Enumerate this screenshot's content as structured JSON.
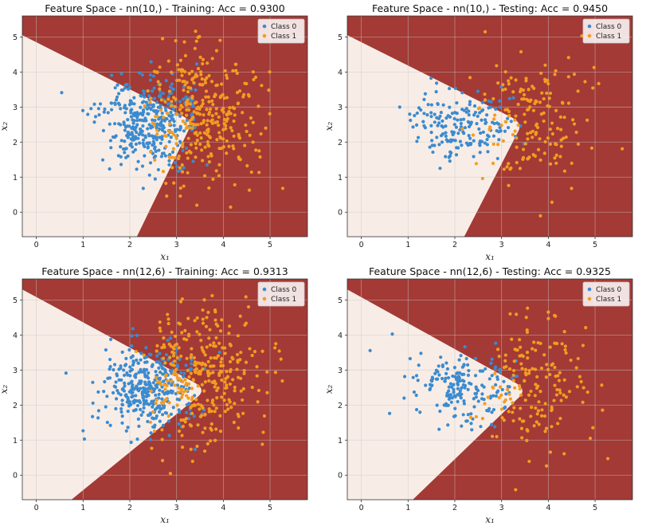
{
  "chart_data": [
    {
      "type": "scatter",
      "title": "Feature Space - nn(10,) - Training: Acc = 0.9300",
      "xlabel": "x₁",
      "ylabel": "x₂",
      "xlim": [
        -0.3,
        5.8
      ],
      "ylim": [
        -0.7,
        5.6
      ],
      "xticks": [
        0,
        1,
        2,
        3,
        4,
        5
      ],
      "yticks": [
        0,
        1,
        2,
        3,
        4,
        5
      ],
      "grid": true,
      "legend_position": "top-right",
      "region_colors": {
        "class0": "#f8ede6",
        "class1": "#a33a35"
      },
      "boundary": {
        "apex": [
          3.35,
          2.6
        ],
        "upper_left": [
          -0.3,
          5.05
        ],
        "lower_left": [
          2.15,
          -0.7
        ]
      },
      "series": [
        {
          "name": "Class 0",
          "color": "#3b8bd0",
          "center": [
            2.45,
            2.55
          ],
          "spread": [
            0.55,
            0.6
          ],
          "count": 380,
          "seed": 11
        },
        {
          "name": "Class 1",
          "color": "#f39c22",
          "center": [
            3.55,
            2.75
          ],
          "spread": [
            0.65,
            0.95
          ],
          "count": 340,
          "seed": 12
        }
      ]
    },
    {
      "type": "scatter",
      "title": "Feature Space - nn(10,) - Testing: Acc = 0.9450",
      "xlabel": "x₁",
      "ylabel": "x₂",
      "xlim": [
        -0.3,
        5.8
      ],
      "ylim": [
        -0.7,
        5.6
      ],
      "xticks": [
        0,
        1,
        2,
        3,
        4,
        5
      ],
      "yticks": [
        0,
        1,
        2,
        3,
        4,
        5
      ],
      "grid": true,
      "legend_position": "top-right",
      "region_colors": {
        "class0": "#f8ede6",
        "class1": "#a33a35"
      },
      "boundary": {
        "apex": [
          3.45,
          2.55
        ],
        "upper_left": [
          -0.3,
          5.05
        ],
        "lower_left": [
          2.2,
          -0.7
        ]
      },
      "series": [
        {
          "name": "Class 0",
          "color": "#3b8bd0",
          "center": [
            2.2,
            2.5
          ],
          "spread": [
            0.6,
            0.55
          ],
          "count": 190,
          "seed": 21
        },
        {
          "name": "Class 1",
          "color": "#f39c22",
          "center": [
            3.7,
            2.7
          ],
          "spread": [
            0.6,
            0.95
          ],
          "count": 170,
          "seed": 22
        }
      ]
    },
    {
      "type": "scatter",
      "title": "Feature Space - nn(12,6) - Training: Acc = 0.9313",
      "xlabel": "x₁",
      "ylabel": "x₂",
      "xlim": [
        -0.3,
        5.8
      ],
      "ylim": [
        -0.7,
        5.6
      ],
      "xticks": [
        0,
        1,
        2,
        3,
        4,
        5
      ],
      "yticks": [
        0,
        1,
        2,
        3,
        4,
        5
      ],
      "grid": true,
      "legend_position": "top-right",
      "region_colors": {
        "class0": "#f8ede6",
        "class1": "#a33a35"
      },
      "boundary": {
        "apex": [
          3.65,
          2.45
        ],
        "upper_left": [
          -0.3,
          5.3
        ],
        "lower_left": [
          0.75,
          -0.7
        ]
      },
      "series": [
        {
          "name": "Class 0",
          "color": "#3b8bd0",
          "center": [
            2.45,
            2.45
          ],
          "spread": [
            0.55,
            0.6
          ],
          "count": 380,
          "seed": 31
        },
        {
          "name": "Class 1",
          "color": "#f39c22",
          "center": [
            3.55,
            2.75
          ],
          "spread": [
            0.65,
            0.95
          ],
          "count": 340,
          "seed": 32
        }
      ]
    },
    {
      "type": "scatter",
      "title": "Feature Space - nn(12,6) - Testing: Acc = 0.9325",
      "xlabel": "x₁",
      "ylabel": "x₂",
      "xlim": [
        -0.3,
        5.8
      ],
      "ylim": [
        -0.7,
        5.6
      ],
      "xticks": [
        0,
        1,
        2,
        3,
        4,
        5
      ],
      "yticks": [
        0,
        1,
        2,
        3,
        4,
        5
      ],
      "grid": true,
      "legend_position": "top-right",
      "region_colors": {
        "class0": "#f8ede6",
        "class1": "#a33a35"
      },
      "boundary": {
        "apex": [
          3.55,
          2.45
        ],
        "upper_left": [
          -0.3,
          5.3
        ],
        "lower_left": [
          1.1,
          -0.7
        ]
      },
      "series": [
        {
          "name": "Class 0",
          "color": "#3b8bd0",
          "center": [
            2.2,
            2.5
          ],
          "spread": [
            0.6,
            0.55
          ],
          "count": 190,
          "seed": 41
        },
        {
          "name": "Class 1",
          "color": "#f39c22",
          "center": [
            3.7,
            2.7
          ],
          "spread": [
            0.6,
            0.95
          ],
          "count": 170,
          "seed": 42
        }
      ]
    }
  ]
}
